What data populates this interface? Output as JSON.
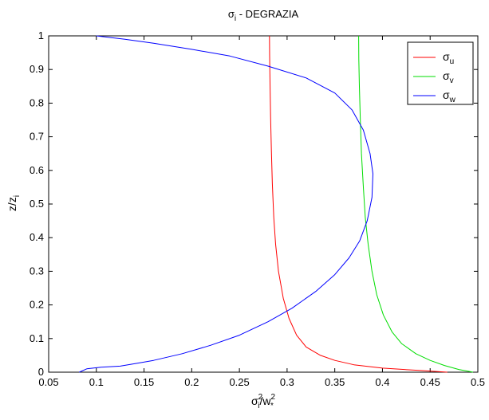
{
  "chart_data": {
    "type": "line",
    "title": {
      "main": "σ",
      "sub": "i",
      "rest": " - DEGRAZIA"
    },
    "xlabel": {
      "main": "σ",
      "sub": "i",
      "sup": "2",
      "rest": "/w",
      "sub2": "*",
      "sup2": "2"
    },
    "ylabel": {
      "main": "z/z",
      "sub": "i"
    },
    "xlim": [
      0.05,
      0.5
    ],
    "ylim": [
      0,
      1
    ],
    "xticks": [
      0.05,
      0.1,
      0.15,
      0.2,
      0.25,
      0.3,
      0.35,
      0.4,
      0.45,
      0.5
    ],
    "xtick_labels": [
      "0.05",
      "0.1",
      "0.15",
      "0.2",
      "0.25",
      "0.3",
      "0.35",
      "0.4",
      "0.45",
      "0.5"
    ],
    "yticks": [
      0,
      0.1,
      0.2,
      0.3,
      0.4,
      0.5,
      0.6,
      0.7,
      0.8,
      0.9,
      1
    ],
    "ytick_labels": [
      "0",
      "0.1",
      "0.2",
      "0.3",
      "0.4",
      "0.5",
      "0.6",
      "0.7",
      "0.8",
      "0.9",
      "1"
    ],
    "grid": false,
    "legend_position": "top-right",
    "series": [
      {
        "name": {
          "main": "σ",
          "sub": "u"
        },
        "color": "#ff0000",
        "points": [
          [
            0.468,
            0.0
          ],
          [
            0.44,
            0.005
          ],
          [
            0.4,
            0.012
          ],
          [
            0.37,
            0.022
          ],
          [
            0.35,
            0.035
          ],
          [
            0.335,
            0.05
          ],
          [
            0.32,
            0.075
          ],
          [
            0.31,
            0.11
          ],
          [
            0.302,
            0.16
          ],
          [
            0.296,
            0.22
          ],
          [
            0.291,
            0.3
          ],
          [
            0.288,
            0.38
          ],
          [
            0.286,
            0.46
          ],
          [
            0.2845,
            0.56
          ],
          [
            0.2835,
            0.66
          ],
          [
            0.2827,
            0.76
          ],
          [
            0.2821,
            0.86
          ],
          [
            0.2817,
            0.94
          ],
          [
            0.2815,
            1.0
          ]
        ]
      },
      {
        "name": {
          "main": "σ",
          "sub": "v"
        },
        "color": "#00dd00",
        "points": [
          [
            0.495,
            0.0
          ],
          [
            0.48,
            0.008
          ],
          [
            0.465,
            0.02
          ],
          [
            0.45,
            0.035
          ],
          [
            0.435,
            0.055
          ],
          [
            0.42,
            0.085
          ],
          [
            0.41,
            0.12
          ],
          [
            0.401,
            0.17
          ],
          [
            0.394,
            0.23
          ],
          [
            0.389,
            0.3
          ],
          [
            0.385,
            0.38
          ],
          [
            0.382,
            0.46
          ],
          [
            0.38,
            0.55
          ],
          [
            0.378,
            0.65
          ],
          [
            0.3768,
            0.75
          ],
          [
            0.3758,
            0.85
          ],
          [
            0.3752,
            0.93
          ],
          [
            0.375,
            1.0
          ]
        ]
      },
      {
        "name": {
          "main": "σ",
          "sub": "w"
        },
        "color": "#0000ff",
        "points": [
          [
            0.082,
            0.0
          ],
          [
            0.09,
            0.01
          ],
          [
            0.105,
            0.015
          ],
          [
            0.125,
            0.018
          ],
          [
            0.14,
            0.025
          ],
          [
            0.16,
            0.035
          ],
          [
            0.19,
            0.055
          ],
          [
            0.22,
            0.08
          ],
          [
            0.25,
            0.11
          ],
          [
            0.28,
            0.15
          ],
          [
            0.305,
            0.19
          ],
          [
            0.33,
            0.24
          ],
          [
            0.35,
            0.29
          ],
          [
            0.365,
            0.34
          ],
          [
            0.376,
            0.39
          ],
          [
            0.384,
            0.45
          ],
          [
            0.389,
            0.52
          ],
          [
            0.39,
            0.59
          ],
          [
            0.387,
            0.65
          ],
          [
            0.38,
            0.72
          ],
          [
            0.368,
            0.78
          ],
          [
            0.35,
            0.83
          ],
          [
            0.32,
            0.875
          ],
          [
            0.28,
            0.91
          ],
          [
            0.24,
            0.94
          ],
          [
            0.2,
            0.96
          ],
          [
            0.16,
            0.978
          ],
          [
            0.13,
            0.99
          ],
          [
            0.1,
            1.0
          ]
        ]
      }
    ]
  }
}
